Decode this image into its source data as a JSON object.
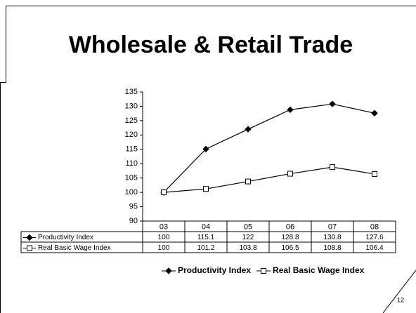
{
  "slide": {
    "page_number": "12"
  },
  "chart_data": {
    "type": "line",
    "title": "Wholesale & Retail Trade",
    "categories": [
      "03",
      "04",
      "05",
      "06",
      "07",
      "08"
    ],
    "series": [
      {
        "name": "Productivity Index",
        "color": "#000000",
        "marker": "diamond",
        "values": [
          100,
          115.1,
          122,
          128.8,
          130.8,
          127.6
        ]
      },
      {
        "name": "Real Basic Wage Index",
        "color": "#000000",
        "marker": "square",
        "values": [
          100,
          101.2,
          103.8,
          106.5,
          108.8,
          106.4
        ]
      }
    ],
    "ylim": [
      90,
      135
    ],
    "yticks": [
      90,
      95,
      100,
      105,
      110,
      115,
      120,
      125,
      130,
      135
    ],
    "grid": false,
    "legend": "bottom",
    "data_table": true
  }
}
